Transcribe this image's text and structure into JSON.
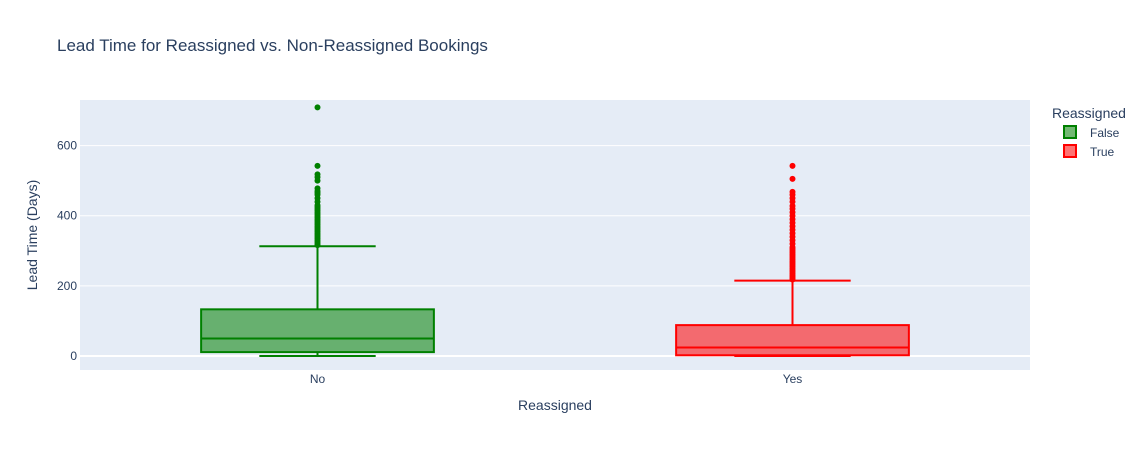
{
  "chart_data": {
    "type": "box",
    "title": "Lead Time for Reassigned vs. Non-Reassigned Bookings",
    "xlabel": "Reassigned",
    "ylabel": "Lead Time (Days)",
    "categories": [
      "No",
      "Yes"
    ],
    "ylim": [
      -40,
      730
    ],
    "yticks": [
      0,
      200,
      400,
      600
    ],
    "grid": true,
    "legend": {
      "title": "Reassigned",
      "placement": "top-right"
    },
    "series": [
      {
        "name": "False",
        "category": "No",
        "color": "#008000",
        "fill": "rgba(0,128,0,0.55)",
        "min": 0,
        "q1": 11,
        "median": 50,
        "q3": 133,
        "upper_fence": 313,
        "outliers": [
          316,
          320,
          325,
          330,
          335,
          340,
          345,
          350,
          355,
          360,
          365,
          370,
          375,
          380,
          385,
          390,
          395,
          400,
          405,
          410,
          415,
          420,
          425,
          430,
          440,
          450,
          460,
          465,
          470,
          478,
          500,
          510,
          518,
          542,
          709
        ]
      },
      {
        "name": "True",
        "category": "Yes",
        "color": "#ff0000",
        "fill": "rgba(255,0,0,0.55)",
        "min": 0,
        "q1": 2,
        "median": 24,
        "q3": 88,
        "upper_fence": 215,
        "outliers": [
          218,
          222,
          226,
          230,
          235,
          240,
          245,
          250,
          255,
          260,
          265,
          270,
          275,
          280,
          285,
          290,
          295,
          300,
          305,
          310,
          320,
          330,
          340,
          350,
          360,
          370,
          380,
          390,
          400,
          410,
          420,
          428,
          440,
          450,
          460,
          468,
          505,
          542
        ]
      }
    ]
  }
}
